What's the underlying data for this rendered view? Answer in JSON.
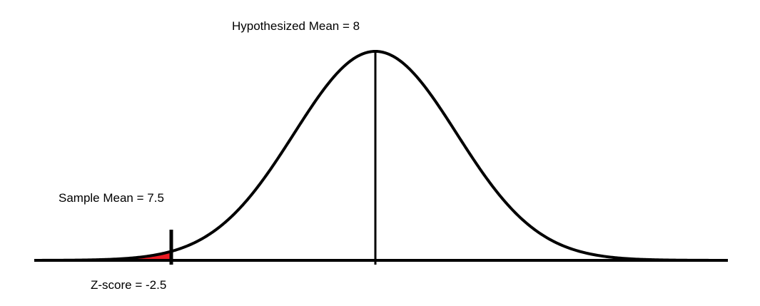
{
  "labels": {
    "hypothesized_mean": "Hypothesized  Mean = 8",
    "sample_mean": "Sample Mean = 7.5",
    "z_score": "Z-score = -2.5"
  },
  "distribution": {
    "type": "normal",
    "mean": 8,
    "sample_mean": 7.5,
    "z_score": -2.5,
    "shaded_tail": "left"
  },
  "colors": {
    "curve": "#000000",
    "shaded_region": "#ec1c24"
  }
}
